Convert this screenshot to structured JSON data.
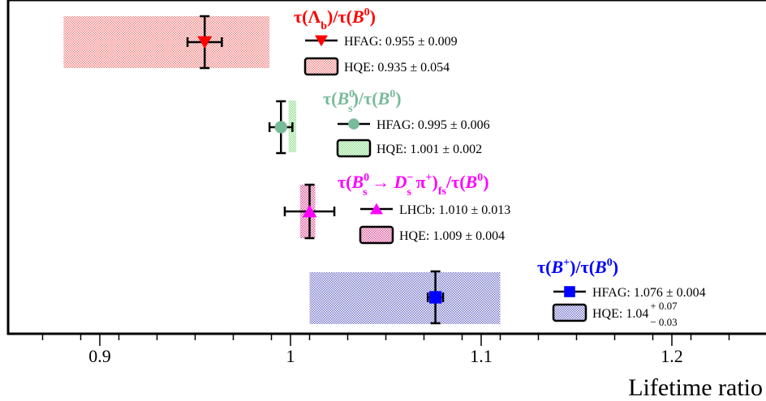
{
  "chart_data": {
    "type": "scatter",
    "xlabel": "Lifetime ratio",
    "xlim": [
      0.85,
      1.25
    ],
    "ticks_major": [
      0.9,
      1.0,
      1.1,
      1.2
    ],
    "tick_labels": [
      "0.9",
      "1",
      "1.1",
      "1.2"
    ],
    "minor_step": 0.02,
    "grid": false,
    "groups": [
      {
        "key": "lambda-b",
        "color": "#ff0000",
        "hatch_color": "#f08080",
        "marker": "triangle-down",
        "title": {
          "tau": "τ(",
          "p1": "Λ",
          "s1": "b",
          "mid": ")/τ(",
          "p2": "B",
          "s2": "0",
          "end": ")"
        },
        "meas": {
          "label": "HFAG: 0.955 ± 0.009",
          "value": 0.955,
          "err": 0.009
        },
        "theory": {
          "label": "HQE: 0.935 ± 0.054",
          "value": 0.935,
          "err": 0.054
        }
      },
      {
        "key": "bs",
        "color": "#77bb99",
        "hatch_color": "#88dd88",
        "marker": "circle",
        "title": {
          "tau": "τ(",
          "p1": "B",
          "s1": "s",
          "sup1": "0",
          "mid": ")/τ(",
          "p2": "B",
          "s2": "0",
          "end": ")"
        },
        "meas": {
          "label": "HFAG: 0.995 ± 0.006",
          "value": 0.995,
          "err": 0.006
        },
        "theory": {
          "label": "HQE: 1.001 ± 0.002",
          "value": 1.001,
          "err": 0.002
        }
      },
      {
        "key": "bs-ds-pi",
        "color": "#ff00ff",
        "hatch_color": "#dd5599",
        "marker": "triangle-up",
        "title": {
          "tau": "τ(",
          "p1": "B",
          "s1": "s",
          "sup1": "0",
          "arrow": " → ",
          "p3": "D",
          "s3": "s",
          "sup3": "−",
          "p4": " π",
          "sup4": "+",
          "mid": ")",
          "fs": "fs",
          "end2": "/τ(",
          "p2": "B",
          "s2": "0",
          "end": ")"
        },
        "meas": {
          "label": "LHCb: 1.010 ± 0.013",
          "value": 1.01,
          "err": 0.013
        },
        "theory": {
          "label": "HQE: 1.009 ± 0.004",
          "value": 1.009,
          "err": 0.004
        }
      },
      {
        "key": "bplus",
        "color": "#0000ff",
        "hatch_color": "#7777cc",
        "marker": "square",
        "title": {
          "tau": "τ(",
          "p1": "B",
          "sup1": "+",
          "mid": ")/τ(",
          "p2": "B",
          "s2": "0",
          "end": ")"
        },
        "meas": {
          "label": "HFAG: 1.076 ± 0.004",
          "value": 1.076,
          "err": 0.004
        },
        "theory": {
          "label": "HQE: 1.04",
          "value": 1.04,
          "err_plus": 0.07,
          "err_minus": 0.03,
          "sup": "+ 0.07",
          "sub": "− 0.03"
        }
      }
    ]
  }
}
